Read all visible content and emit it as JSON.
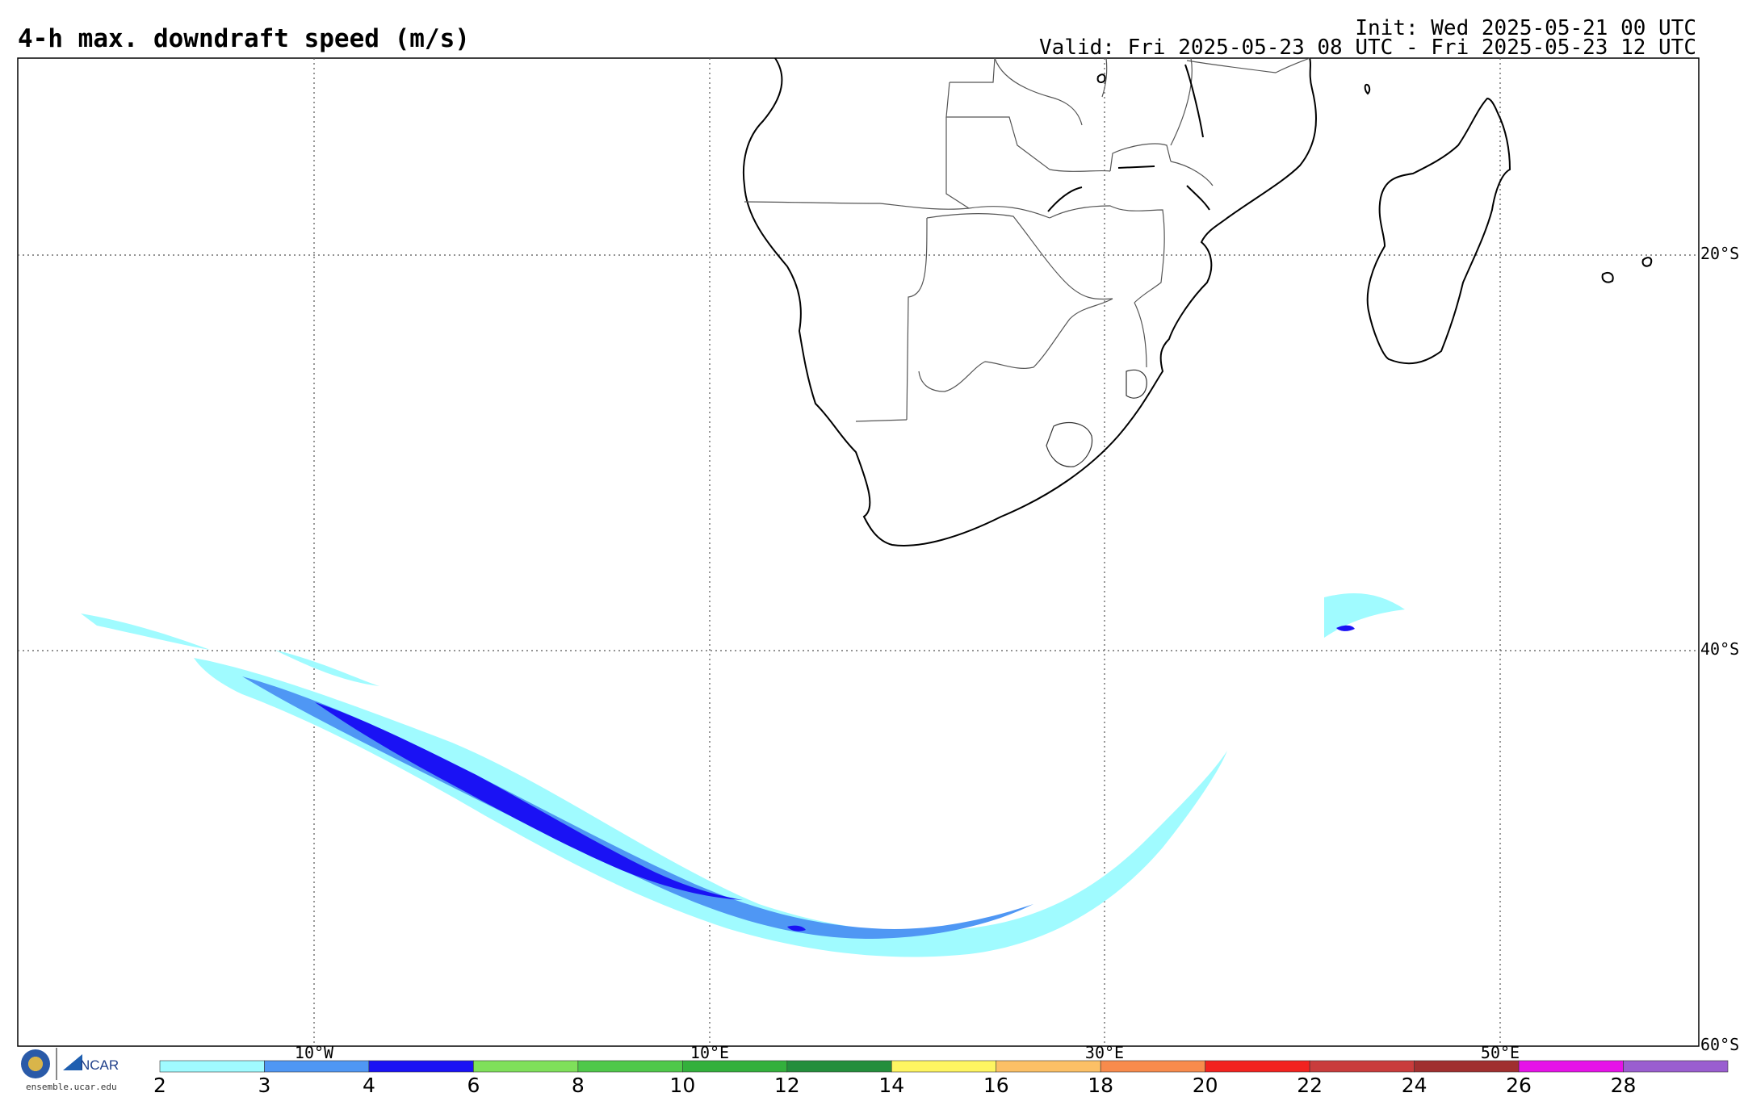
{
  "header": {
    "title": "4-h max. downdraft speed (m/s)",
    "init": "Init: Wed 2025-05-21 00 UTC",
    "valid": "Valid: Fri 2025-05-23 08 UTC - Fri 2025-05-23 12 UTC"
  },
  "map": {
    "lat_labels": [
      "20°S",
      "40°S",
      "60°S"
    ],
    "lon_labels": [
      "10°W",
      "10°E",
      "30°E",
      "50°E"
    ],
    "gridlines": "dotted",
    "coastline_color": "#000000",
    "border_color": "#555555"
  },
  "colorbar": {
    "ticks": [
      "2",
      "3",
      "4",
      "6",
      "8",
      "10",
      "12",
      "14",
      "16",
      "18",
      "20",
      "22",
      "24",
      "26",
      "28"
    ],
    "colors": [
      "#a0fbff",
      "#4f97f4",
      "#1a12f4",
      "#7fe05a",
      "#4fc84a",
      "#33b03c",
      "#238e3c",
      "#fef561",
      "#fcc066",
      "#f88b4c",
      "#f2221f",
      "#c93c3c",
      "#a02f2f",
      "#e612e8",
      "#9a5ed0"
    ]
  },
  "branding": {
    "ncar": "NCAR",
    "site": "ensemble.ucar.edu"
  }
}
